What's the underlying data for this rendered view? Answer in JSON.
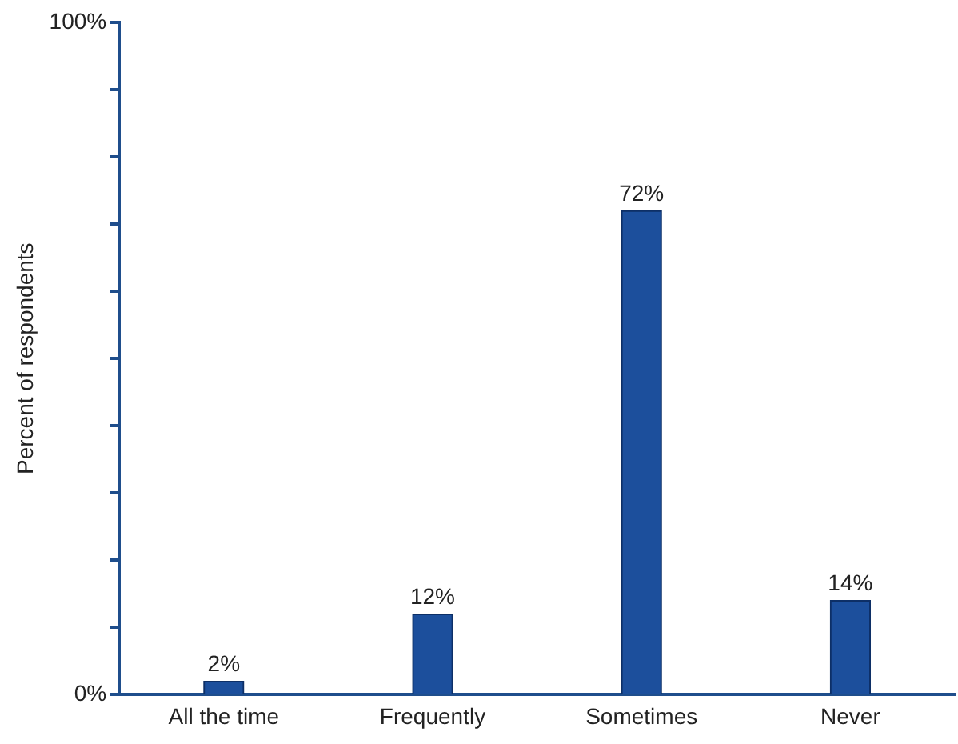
{
  "chart_data": {
    "type": "bar",
    "ylabel": "Percent of respondents",
    "categories": [
      "All the time",
      "Frequently",
      "Sometimes",
      "Never"
    ],
    "values": [
      2,
      12,
      72,
      14
    ],
    "value_labels": [
      "2%",
      "12%",
      "72%",
      "14%"
    ],
    "color": "#1c4f9c",
    "ylim": [
      0,
      100
    ],
    "yticks": [
      {
        "value": 0,
        "label": "0%"
      },
      {
        "value": 10,
        "label": null
      },
      {
        "value": 20,
        "label": null
      },
      {
        "value": 30,
        "label": null
      },
      {
        "value": 40,
        "label": null
      },
      {
        "value": 50,
        "label": null
      },
      {
        "value": 60,
        "label": null
      },
      {
        "value": 70,
        "label": null
      },
      {
        "value": 80,
        "label": null
      },
      {
        "value": 90,
        "label": null
      },
      {
        "value": 100,
        "label": "100%"
      }
    ],
    "grid": false,
    "legend": false
  }
}
